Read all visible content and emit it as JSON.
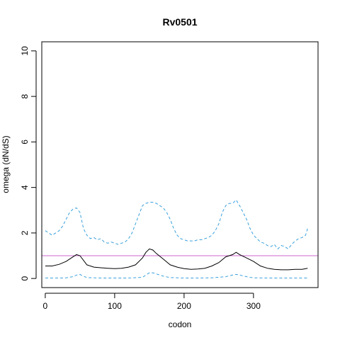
{
  "chart_data": {
    "type": "line",
    "title": "Rv0501",
    "xlabel": "codon",
    "ylabel": "omega (dN/dS)",
    "xlim": [
      -5,
      393
    ],
    "ylim": [
      -0.4,
      10.4
    ],
    "x_ticks": [
      0,
      100,
      200,
      300
    ],
    "y_ticks": [
      0,
      2,
      4,
      6,
      8,
      10
    ],
    "grid": false,
    "reference_line": {
      "y": 1,
      "color": "#cc66cc"
    },
    "series": [
      {
        "color": "#000000",
        "style": "solid",
        "x": [
          0,
          10,
          20,
          30,
          40,
          45,
          50,
          55,
          60,
          70,
          80,
          90,
          100,
          110,
          120,
          130,
          140,
          145,
          150,
          155,
          160,
          170,
          180,
          190,
          200,
          210,
          220,
          230,
          240,
          250,
          260,
          270,
          275,
          280,
          290,
          300,
          310,
          320,
          330,
          340,
          350,
          360,
          370,
          378
        ],
        "y": [
          0.55,
          0.55,
          0.62,
          0.75,
          0.95,
          1.05,
          1.0,
          0.8,
          0.6,
          0.5,
          0.47,
          0.45,
          0.43,
          0.45,
          0.5,
          0.6,
          0.9,
          1.15,
          1.3,
          1.25,
          1.1,
          0.85,
          0.6,
          0.5,
          0.43,
          0.4,
          0.42,
          0.45,
          0.55,
          0.7,
          0.95,
          1.05,
          1.15,
          1.05,
          0.9,
          0.75,
          0.55,
          0.45,
          0.4,
          0.38,
          0.38,
          0.4,
          0.4,
          0.45
        ]
      },
      {
        "color": "#3aa0dc",
        "style": "dashed",
        "x": [
          0,
          5,
          10,
          15,
          20,
          25,
          30,
          35,
          40,
          45,
          50,
          55,
          60,
          65,
          70,
          75,
          80,
          85,
          90,
          95,
          100,
          105,
          110,
          115,
          120,
          125,
          130,
          135,
          140,
          145,
          150,
          155,
          160,
          165,
          170,
          175,
          180,
          185,
          190,
          195,
          200,
          205,
          210,
          215,
          220,
          225,
          230,
          235,
          240,
          245,
          250,
          255,
          260,
          265,
          270,
          275,
          280,
          285,
          290,
          295,
          300,
          305,
          310,
          315,
          320,
          325,
          330,
          335,
          340,
          345,
          350,
          355,
          360,
          365,
          370,
          375,
          378
        ],
        "y": [
          2.1,
          2.0,
          1.9,
          2.0,
          2.1,
          2.3,
          2.6,
          2.9,
          3.05,
          3.1,
          2.9,
          2.2,
          1.9,
          1.75,
          1.8,
          1.7,
          1.75,
          1.6,
          1.55,
          1.6,
          1.55,
          1.5,
          1.55,
          1.6,
          1.75,
          2.0,
          2.4,
          2.8,
          3.2,
          3.3,
          3.35,
          3.35,
          3.3,
          3.2,
          3.1,
          2.9,
          2.6,
          2.2,
          1.9,
          1.75,
          1.7,
          1.65,
          1.65,
          1.65,
          1.7,
          1.7,
          1.75,
          1.8,
          1.9,
          2.1,
          2.4,
          2.9,
          3.2,
          3.3,
          3.3,
          3.45,
          3.2,
          2.9,
          2.6,
          2.2,
          1.9,
          1.75,
          1.6,
          1.55,
          1.45,
          1.4,
          1.5,
          1.3,
          1.45,
          1.4,
          1.3,
          1.5,
          1.65,
          1.75,
          1.8,
          1.9,
          2.2
        ]
      },
      {
        "color": "#3aa0dc",
        "style": "dashed",
        "x": [
          0,
          20,
          30,
          40,
          45,
          50,
          55,
          60,
          80,
          100,
          120,
          140,
          145,
          150,
          155,
          160,
          170,
          180,
          200,
          220,
          240,
          260,
          270,
          275,
          280,
          290,
          300,
          320,
          340,
          360,
          378
        ],
        "y": [
          0.02,
          0.02,
          0.03,
          0.08,
          0.15,
          0.18,
          0.1,
          0.04,
          0.02,
          0.02,
          0.02,
          0.05,
          0.15,
          0.25,
          0.25,
          0.2,
          0.1,
          0.04,
          0.02,
          0.02,
          0.03,
          0.08,
          0.15,
          0.18,
          0.15,
          0.08,
          0.03,
          0.02,
          0.02,
          0.02,
          0.02
        ]
      }
    ]
  }
}
